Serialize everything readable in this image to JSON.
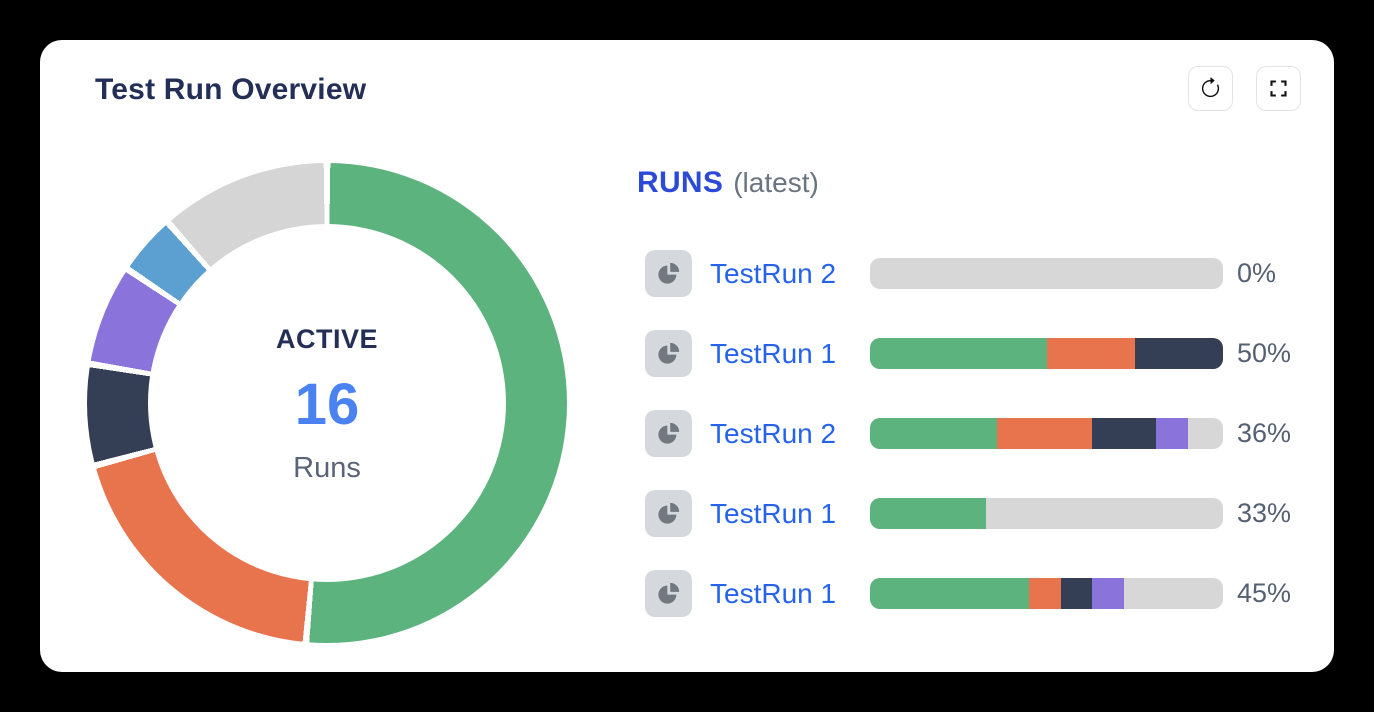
{
  "header": {
    "title": "Test Run Overview"
  },
  "colors": {
    "page_bg": "#000000",
    "card_bg": "#ffffff",
    "title_text": "#232F56",
    "count_blue": "#4A82F2",
    "sub_text": "#5A6478",
    "runs_heading": "#2B4AD7",
    "muted_text": "#6A7380",
    "accent_blue": "#2563EB",
    "pct_text": "#566073",
    "bar_bg": "#D7D7D7",
    "icon_chip_bg": "#D5D9DE",
    "icon_glyph": "#71787F",
    "button_icon": "#111111",
    "status_green": "#5CB37E",
    "status_orange": "#E8744E",
    "status_navy": "#343F55",
    "status_purple": "#8A73DA",
    "status_blue": "#5BA0D0",
    "status_gray": "#D5D5D5"
  },
  "donut": {
    "center_label": "ACTIVE",
    "center_value": "16",
    "center_sublabel": "Runs"
  },
  "runs_list": {
    "heading": "RUNS",
    "heading_suffix": "(latest)",
    "rows": [
      {
        "name": "TestRun 2",
        "pct_label": "0%",
        "segments": []
      },
      {
        "name": "TestRun 1",
        "pct_label": "50%",
        "segments": [
          {
            "color": "status_green",
            "pct": 50
          },
          {
            "color": "status_orange",
            "pct": 25
          },
          {
            "color": "status_navy",
            "pct": 25
          }
        ]
      },
      {
        "name": "TestRun 2",
        "pct_label": "36%",
        "segments": [
          {
            "color": "status_green",
            "pct": 36
          },
          {
            "color": "status_orange",
            "pct": 27
          },
          {
            "color": "status_navy",
            "pct": 18
          },
          {
            "color": "status_purple",
            "pct": 9
          }
        ]
      },
      {
        "name": "TestRun 1",
        "pct_label": "33%",
        "segments": [
          {
            "color": "status_green",
            "pct": 33
          }
        ]
      },
      {
        "name": "TestRun 1",
        "pct_label": "45%",
        "segments": [
          {
            "color": "status_green",
            "pct": 45
          },
          {
            "color": "status_orange",
            "pct": 9
          },
          {
            "color": "status_navy",
            "pct": 9
          },
          {
            "color": "status_purple",
            "pct": 9
          }
        ]
      }
    ]
  },
  "chart_data": [
    {
      "type": "pie",
      "variant": "donut",
      "title": "Test Run Overview",
      "center": {
        "label": "ACTIVE",
        "value": 16,
        "unit": "Runs"
      },
      "start_angle_deg": 0,
      "direction": "clockwise",
      "hole_ratio": 0.75,
      "legend_position": "none",
      "slices": [
        {
          "name": "green",
          "color": "#5CB37E",
          "pct": 51.4
        },
        {
          "name": "orange",
          "color": "#E8744E",
          "pct": 19.4
        },
        {
          "name": "navy",
          "color": "#343F55",
          "pct": 6.8
        },
        {
          "name": "purple",
          "color": "#8A73DA",
          "pct": 6.8
        },
        {
          "name": "light-blue",
          "color": "#5BA0D0",
          "pct": 4.1
        },
        {
          "name": "gray",
          "color": "#D5D5D5",
          "pct": 11.5
        }
      ]
    },
    {
      "type": "bar",
      "variant": "horizontal-stacked-progress",
      "categories": [
        "TestRun 2",
        "TestRun 1",
        "TestRun 2",
        "TestRun 1",
        "TestRun 1"
      ],
      "values_pct": [
        0,
        50,
        36,
        33,
        45
      ],
      "xlim": [
        0,
        100
      ],
      "stacks_pct": [
        [
          {
            "gray": 100
          }
        ],
        [
          {
            "green": 50
          },
          {
            "orange": 25
          },
          {
            "navy": 25
          }
        ],
        [
          {
            "green": 36
          },
          {
            "orange": 27
          },
          {
            "navy": 18
          },
          {
            "purple": 9
          },
          {
            "gray": 10
          }
        ],
        [
          {
            "green": 33
          },
          {
            "gray": 67
          }
        ],
        [
          {
            "green": 45
          },
          {
            "orange": 9
          },
          {
            "navy": 9
          },
          {
            "purple": 9
          },
          {
            "gray": 28
          }
        ]
      ]
    }
  ]
}
